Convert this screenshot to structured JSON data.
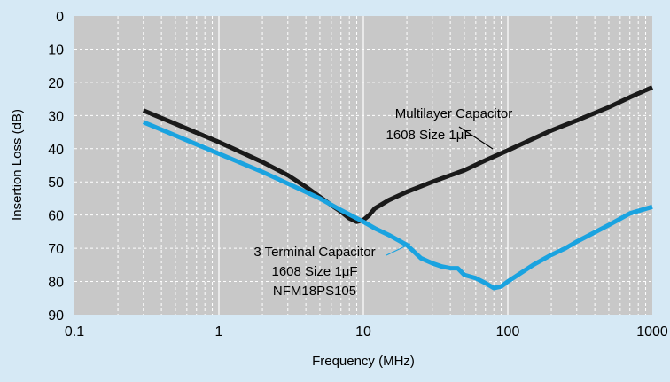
{
  "chart_data": {
    "type": "line",
    "xlabel": "Frequency (MHz)",
    "ylabel": "Insertion Loss (dB)",
    "x_scale": "log",
    "xlim": [
      0.1,
      1000
    ],
    "ylim": [
      0,
      90
    ],
    "y_inverted": true,
    "x_ticks": [
      0.1,
      1,
      10,
      100,
      1000
    ],
    "x_tick_labels": [
      "0.1",
      "1",
      "10",
      "100",
      "1000"
    ],
    "y_ticks": [
      0,
      10,
      20,
      30,
      40,
      50,
      60,
      70,
      80,
      90
    ],
    "y_tick_labels": [
      "0",
      "10",
      "20",
      "30",
      "40",
      "50",
      "60",
      "70",
      "80",
      "90"
    ],
    "grid": true,
    "colors": {
      "background": "#d6e9f5",
      "plot_area": "#c8c8c8",
      "grid": "#ffffff"
    },
    "series": [
      {
        "label_lines": [
          "Multilayer Capacitor",
          "1608 Size 1μF"
        ],
        "color": "#1a1a1a",
        "points": [
          [
            0.3,
            28.5
          ],
          [
            0.5,
            32.5
          ],
          [
            1,
            38
          ],
          [
            2,
            44
          ],
          [
            3,
            48
          ],
          [
            4,
            51.5
          ],
          [
            5,
            54.5
          ],
          [
            6,
            57
          ],
          [
            7,
            59
          ],
          [
            8,
            61
          ],
          [
            9,
            62
          ],
          [
            10,
            61.5
          ],
          [
            11,
            60
          ],
          [
            12,
            58
          ],
          [
            15,
            55.5
          ],
          [
            20,
            53
          ],
          [
            30,
            50
          ],
          [
            50,
            46.5
          ],
          [
            70,
            43.5
          ],
          [
            100,
            40.5
          ],
          [
            150,
            37
          ],
          [
            200,
            34.5
          ],
          [
            300,
            31.5
          ],
          [
            500,
            27.5
          ],
          [
            700,
            24.5
          ],
          [
            1000,
            21.5
          ]
        ]
      },
      {
        "label_lines": [
          "3 Terminal Capacitor",
          "1608 Size 1μF",
          "NFM18PS105"
        ],
        "color": "#1aa3e0",
        "points": [
          [
            0.3,
            32
          ],
          [
            0.5,
            36
          ],
          [
            1,
            41.5
          ],
          [
            2,
            47
          ],
          [
            3,
            50.5
          ],
          [
            5,
            55
          ],
          [
            7,
            58.5
          ],
          [
            10,
            62
          ],
          [
            12,
            64
          ],
          [
            15,
            66
          ],
          [
            20,
            69
          ],
          [
            25,
            73
          ],
          [
            30,
            74.5
          ],
          [
            35,
            75.5
          ],
          [
            40,
            76
          ],
          [
            45,
            76
          ],
          [
            50,
            78
          ],
          [
            60,
            79
          ],
          [
            70,
            80.5
          ],
          [
            80,
            82
          ],
          [
            90,
            81.5
          ],
          [
            100,
            80
          ],
          [
            150,
            75
          ],
          [
            200,
            72
          ],
          [
            250,
            70
          ],
          [
            300,
            68
          ],
          [
            500,
            63
          ],
          [
            700,
            59.5
          ],
          [
            1000,
            57.5
          ]
        ]
      }
    ]
  }
}
